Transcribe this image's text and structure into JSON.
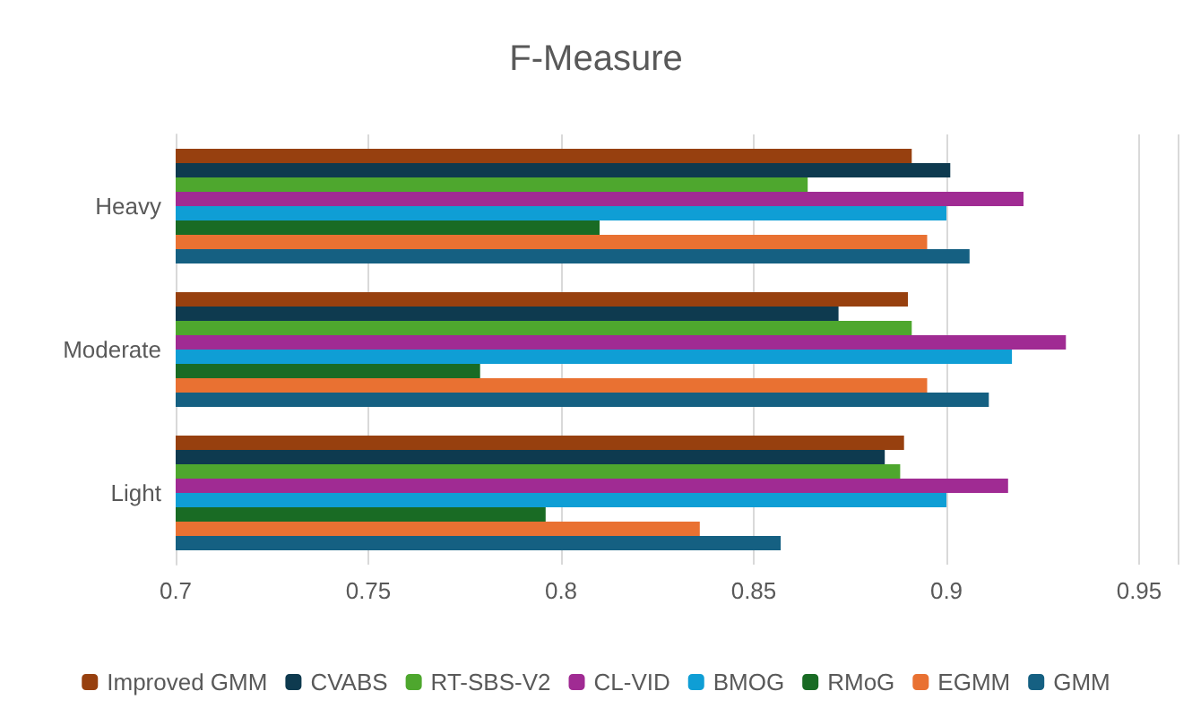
{
  "chart_data": {
    "type": "bar",
    "orientation": "horizontal",
    "title": "F-Measure",
    "categories": [
      "Heavy",
      "Moderate",
      "Light"
    ],
    "series": [
      {
        "name": "Improved GMM",
        "color": "#97400f",
        "values": [
          0.891,
          0.89,
          0.889
        ]
      },
      {
        "name": "CVABS",
        "color": "#0e3a4f",
        "values": [
          0.901,
          0.872,
          0.884
        ]
      },
      {
        "name": "RT-SBS-V2",
        "color": "#4ea72e",
        "values": [
          0.864,
          0.891,
          0.888
        ]
      },
      {
        "name": "CL-VID",
        "color": "#a02b93",
        "values": [
          0.92,
          0.931,
          0.916
        ]
      },
      {
        "name": "BMOG",
        "color": "#0f9ed5",
        "values": [
          0.9,
          0.917,
          0.9
        ]
      },
      {
        "name": "RMoG",
        "color": "#196b24",
        "values": [
          0.81,
          0.779,
          0.796
        ]
      },
      {
        "name": "EGMM",
        "color": "#e97132",
        "values": [
          0.895,
          0.895,
          0.836
        ]
      },
      {
        "name": "GMM",
        "color": "#156082",
        "values": [
          0.906,
          0.911,
          0.857
        ]
      }
    ],
    "xlim": [
      0.7,
      0.96
    ],
    "xticks": [
      0.7,
      0.75,
      0.8,
      0.85,
      0.9,
      0.95
    ],
    "grid": "x",
    "legend": "bottom"
  }
}
